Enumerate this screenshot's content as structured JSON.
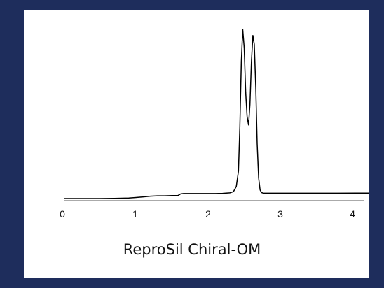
{
  "chart_data": {
    "type": "line",
    "title": "ReproSil Chiral-OM",
    "xlabel": "",
    "ylabel": "",
    "xlim": [
      0,
      4.8
    ],
    "ylim": [
      0,
      1
    ],
    "xticks": [
      {
        "value": 0,
        "label": "0"
      },
      {
        "value": 1,
        "label": "1"
      },
      {
        "value": 2,
        "label": "2"
      },
      {
        "value": 3,
        "label": "3"
      },
      {
        "value": 4,
        "label": "4"
      }
    ],
    "grid": false,
    "series": [
      {
        "color": "#000000",
        "x": [
          0.0,
          0.3,
          0.5,
          0.7,
          0.9,
          1.0,
          1.1,
          1.15,
          1.2,
          1.3,
          1.4,
          1.5,
          1.58,
          1.62,
          1.66,
          1.7,
          1.8,
          1.9,
          2.0,
          2.1,
          2.2,
          2.3,
          2.35,
          2.39,
          2.42,
          2.44,
          2.46,
          2.48,
          2.5,
          2.52,
          2.54,
          2.56,
          2.58,
          2.6,
          2.62,
          2.64,
          2.66,
          2.68,
          2.7,
          2.72,
          2.74,
          2.76,
          2.8,
          2.9,
          3.0,
          3.2,
          3.5,
          3.8,
          4.1,
          4.4,
          4.8
        ],
        "y": [
          0.0,
          0.0,
          0.0,
          0.001,
          0.003,
          0.006,
          0.01,
          0.012,
          0.014,
          0.016,
          0.016,
          0.017,
          0.017,
          0.027,
          0.029,
          0.029,
          0.029,
          0.029,
          0.029,
          0.029,
          0.03,
          0.033,
          0.04,
          0.07,
          0.16,
          0.42,
          0.8,
          0.988,
          0.88,
          0.62,
          0.48,
          0.43,
          0.55,
          0.8,
          0.952,
          0.9,
          0.65,
          0.32,
          0.12,
          0.05,
          0.035,
          0.032,
          0.031,
          0.031,
          0.031,
          0.031,
          0.031,
          0.031,
          0.032,
          0.032,
          0.032
        ]
      }
    ]
  }
}
